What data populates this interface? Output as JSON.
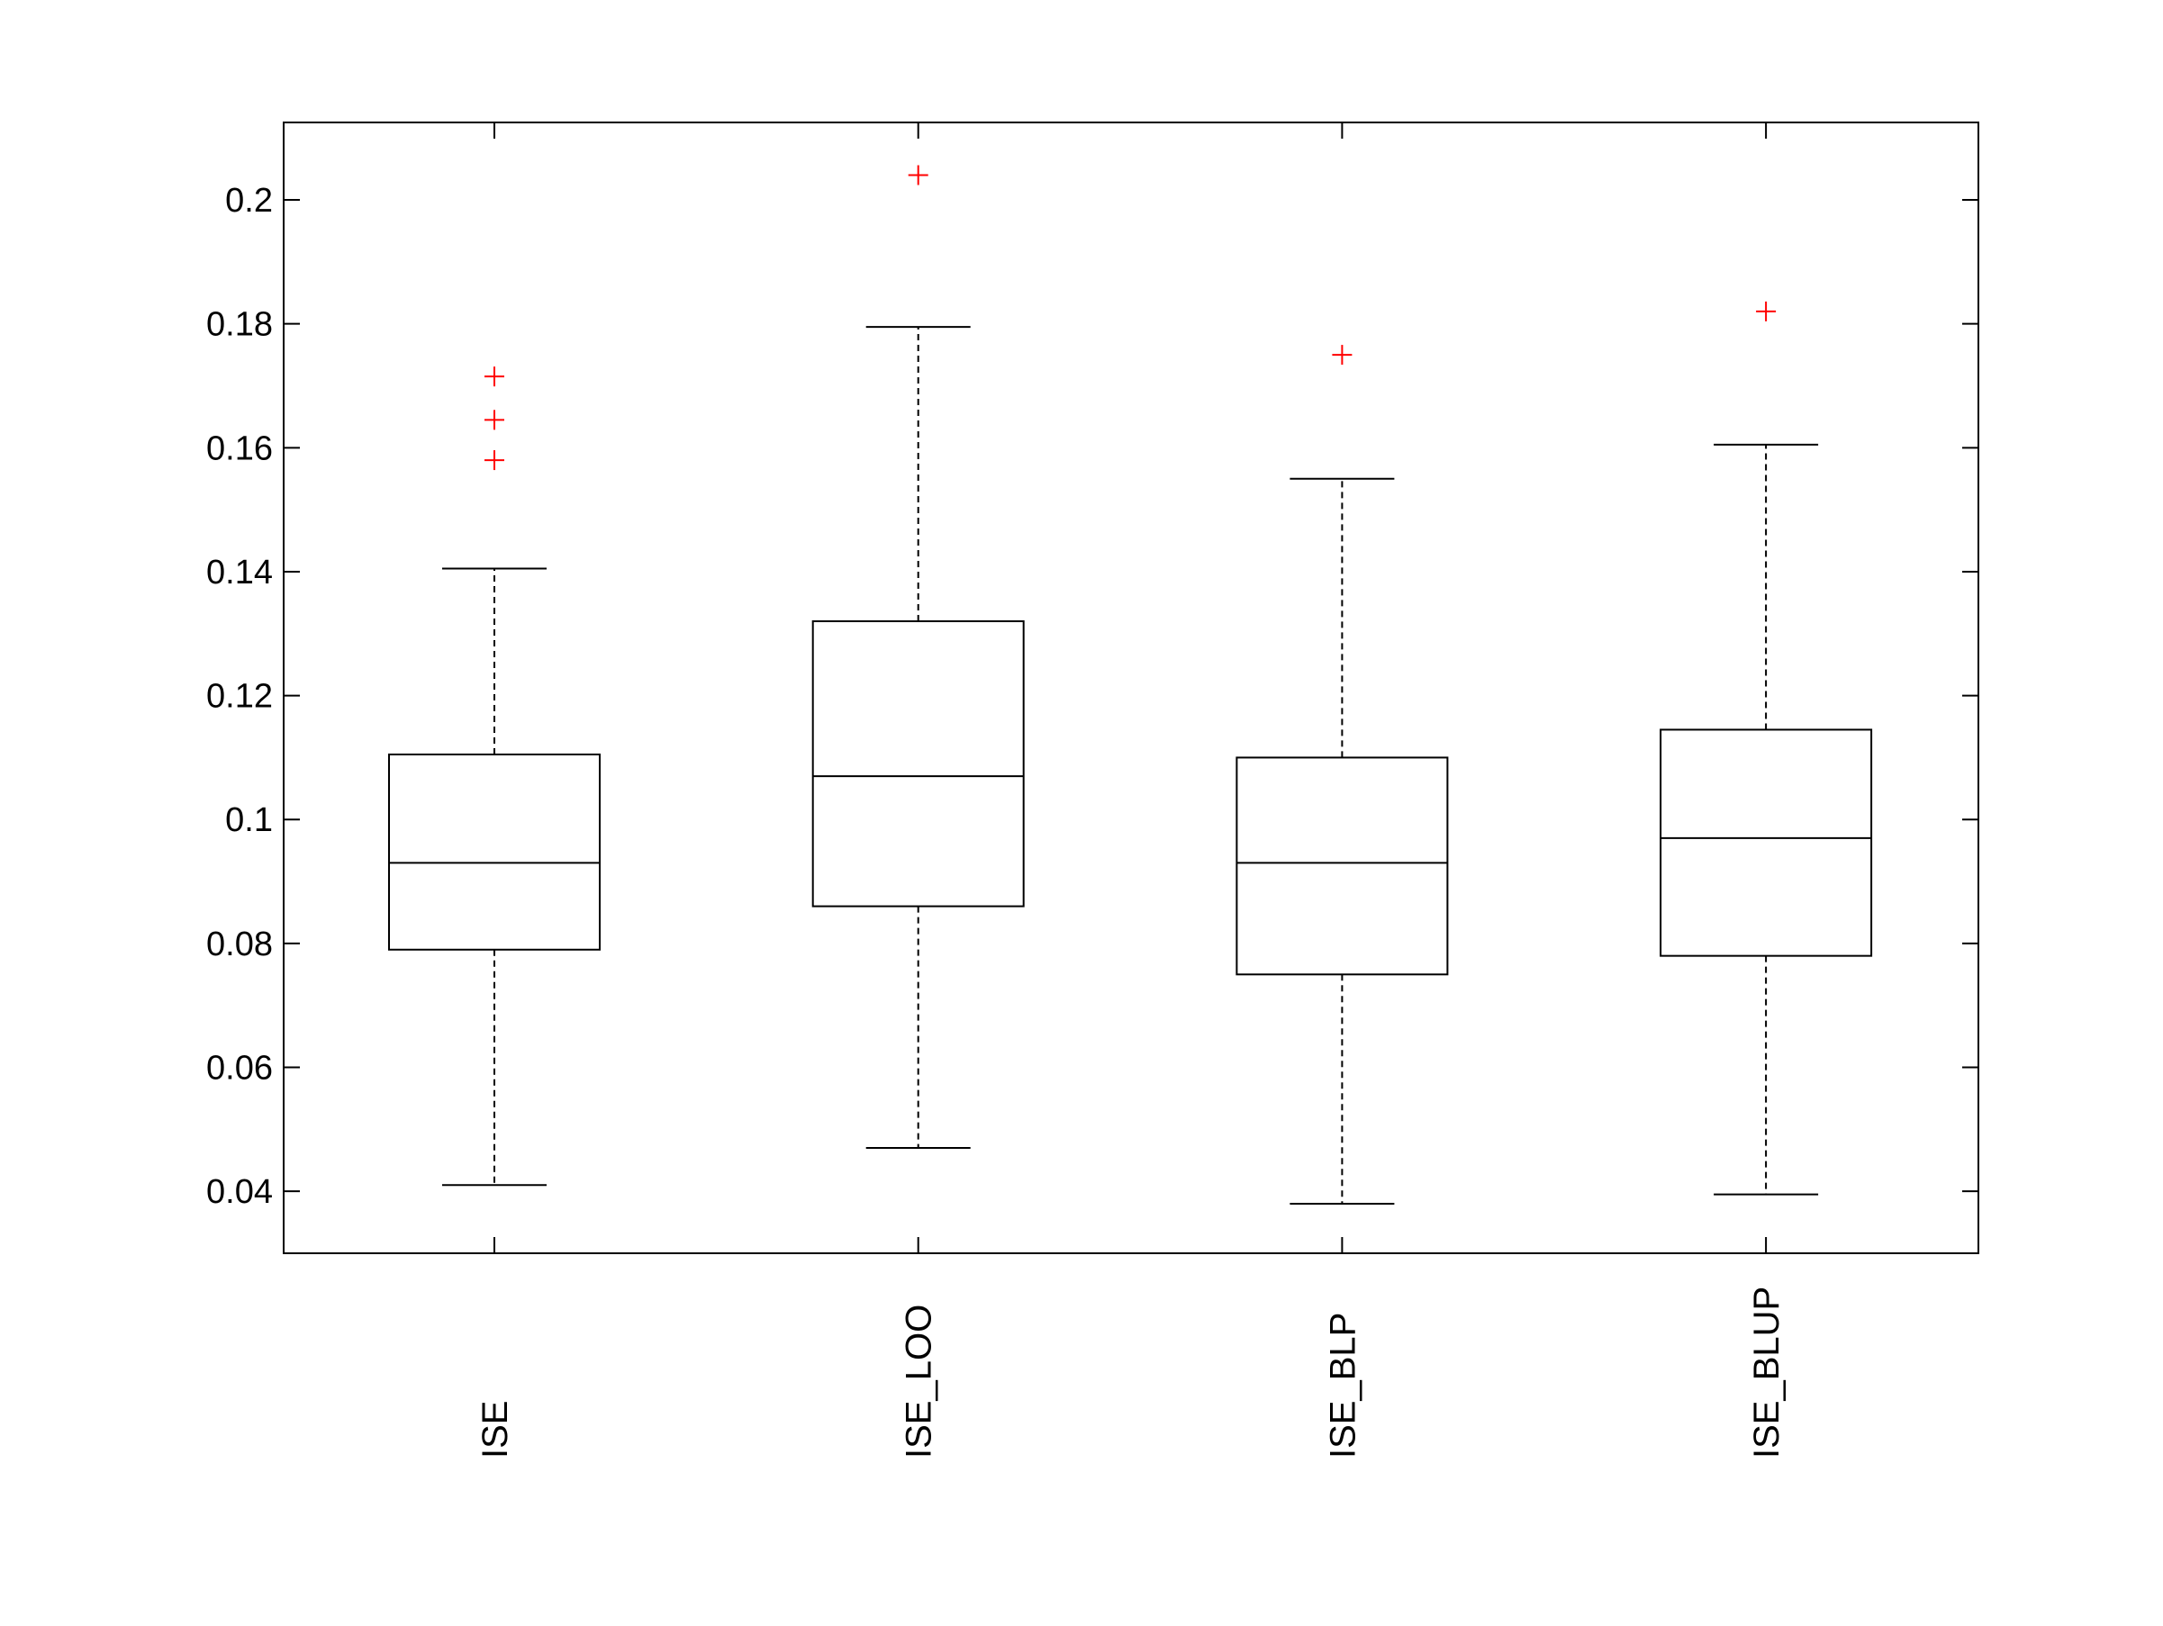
{
  "chart_data": {
    "type": "box",
    "title": "",
    "xlabel": "",
    "ylabel": "",
    "ylim": [
      0.03,
      0.2125
    ],
    "yticks": [
      0.04,
      0.06,
      0.08,
      0.1,
      0.12,
      0.14,
      0.16,
      0.18,
      0.2
    ],
    "ytick_labels": [
      "0.04",
      "0.06",
      "0.08",
      "0.1",
      "0.12",
      "0.14",
      "0.16",
      "0.18",
      "0.2"
    ],
    "categories": [
      "ISE",
      "ISE_LOO",
      "ISE_BLP",
      "ISE_BLUP"
    ],
    "boxes": [
      {
        "whisker_low": 0.041,
        "q1": 0.079,
        "median": 0.093,
        "q3": 0.1105,
        "whisker_high": 0.1405,
        "outliers": [
          0.1715,
          0.1645,
          0.158
        ]
      },
      {
        "whisker_low": 0.047,
        "q1": 0.086,
        "median": 0.107,
        "q3": 0.132,
        "whisker_high": 0.1795,
        "outliers": [
          0.204
        ]
      },
      {
        "whisker_low": 0.038,
        "q1": 0.075,
        "median": 0.093,
        "q3": 0.11,
        "whisker_high": 0.155,
        "outliers": [
          0.175
        ]
      },
      {
        "whisker_low": 0.0395,
        "q1": 0.078,
        "median": 0.097,
        "q3": 0.1145,
        "whisker_high": 0.1605,
        "outliers": [
          0.182
        ]
      }
    ],
    "grid": false,
    "colors": {
      "box": "#000000",
      "outlier": "#ff0000",
      "axis": "#000000",
      "background": "#ffffff"
    }
  }
}
